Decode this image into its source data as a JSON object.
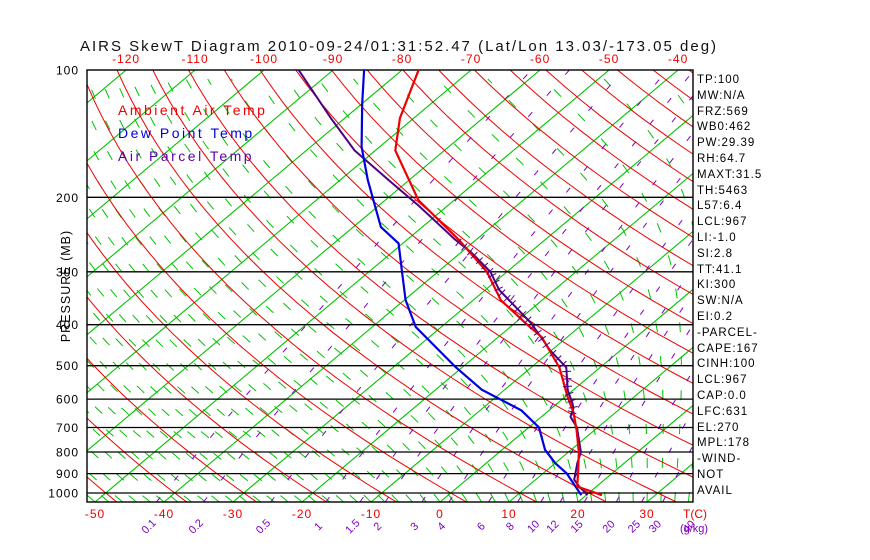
{
  "title": "AIRS SkewT Diagram 2010-09-24/01:31:52.47 (Lat/Lon 13.03/-173.05 deg)",
  "legend": {
    "ambient": "Ambient Air Temp",
    "dew": "Dew Point Temp",
    "parcel": "Air Parcel Temp"
  },
  "colors": {
    "isotherm_green": "#00c300",
    "adiabat_red": "#ee0000",
    "mixing_purple": "#8000c8",
    "parcel_purple": "#4b0082",
    "ambient_red": "#ee0000",
    "dew_blue": "#0000e0",
    "axis_black": "#000000"
  },
  "axes": {
    "pressure_title": "PRESSURE (MB)",
    "pressure_ticks": [
      100,
      200,
      300,
      400,
      500,
      600,
      700,
      800,
      900,
      1000
    ],
    "top_temp_ticks": [
      -120,
      -110,
      -100,
      -90,
      -80,
      -70,
      -60,
      -50,
      -40
    ],
    "bottom_temp_ticks": [
      -50,
      -40,
      -30,
      -20,
      -10,
      0,
      10,
      20,
      30
    ],
    "temp_unit_label": "T(C)",
    "mixing_ratio_values": [
      0.1,
      0.2,
      0.5,
      1,
      1.5,
      2,
      3,
      4,
      6,
      8,
      10,
      12,
      15,
      20,
      25,
      30,
      40
    ],
    "mixing_unit_label": "(g/kg)"
  },
  "stats": [
    "TP:100",
    "MW:N/A",
    "FRZ:569",
    "WB0:462",
    "PW:29.39",
    "RH:64.7",
    "MAXT:31.5",
    "TH:5463",
    "L57:6.4",
    "LCL:967",
    "LI:-1.0",
    "SI:2.8",
    "TT:41.1",
    "KI:300",
    "SW:N/A",
    "EI:0.2",
    "-PARCEL-",
    "CAPE:167",
    "CINH:100",
    "LCL:967",
    "CAP:0.0",
    "LFC:631",
    "EL:270",
    "MPL:178",
    "-WIND-",
    "NOT",
    "AVAIL"
  ],
  "chart_data": {
    "type": "line",
    "title": "AIRS SkewT Diagram 2010-09-24/01:31:52.47",
    "xlabel": "Temperature (C), skewed isotherms",
    "ylabel": "Pressure (MB), logarithmic 100-1050",
    "ylim": [
      100,
      1050
    ],
    "grid": {
      "isotherms_c": {
        "from": -130,
        "to": 40,
        "step": 10
      },
      "dry_adiabats_theta_c": {
        "from": -60,
        "to": 190,
        "step": 10
      },
      "moist_adiabats_start_c": {
        "from": -62,
        "to": 44,
        "step": 2
      },
      "mixing_ratio_g_kg": [
        0.1,
        0.2,
        0.5,
        1,
        1.5,
        2,
        3,
        4,
        6,
        8,
        10,
        12,
        15,
        20,
        25,
        30,
        40
      ]
    },
    "hatch_region": {
      "parcel_warm_layer_mb": [
        270,
        631
      ]
    },
    "series": [
      {
        "name": "Ambient Air Temp",
        "color": "#ee0000",
        "points_p_t": [
          [
            100,
            -77.6
          ],
          [
            130,
            -72.0
          ],
          [
            155,
            -67.1
          ],
          [
            203,
            -55.2
          ],
          [
            252,
            -42.5
          ],
          [
            300,
            -32.9
          ],
          [
            350,
            -26.0
          ],
          [
            397,
            -18.4
          ],
          [
            428,
            -13.7
          ],
          [
            505,
            -5.9
          ],
          [
            590,
            0.2
          ],
          [
            645,
            3.9
          ],
          [
            710,
            7.4
          ],
          [
            800,
            11.5
          ],
          [
            885,
            14.6
          ],
          [
            965,
            17.2
          ],
          [
            1012,
            22.3
          ]
        ]
      },
      {
        "name": "Dew Point Temp",
        "color": "#0000e0",
        "points_p_t": [
          [
            100,
            -85.5
          ],
          [
            120,
            -80.0
          ],
          [
            152,
            -72.6
          ],
          [
            182,
            -66.0
          ],
          [
            235,
            -56.0
          ],
          [
            257,
            -50.6
          ],
          [
            300,
            -45.2
          ],
          [
            350,
            -39.8
          ],
          [
            405,
            -33.7
          ],
          [
            504,
            -21.0
          ],
          [
            570,
            -13.3
          ],
          [
            638,
            -4.0
          ],
          [
            700,
            1.5
          ],
          [
            790,
            6.2
          ],
          [
            850,
            10.0
          ],
          [
            900,
            13.5
          ],
          [
            1012,
            19.3
          ]
        ]
      },
      {
        "name": "Air Parcel Temp",
        "color": "#4b0082",
        "points_p_t": [
          [
            100,
            -95.0
          ],
          [
            130,
            -82.0
          ],
          [
            155,
            -73.0
          ],
          [
            182,
            -63.0
          ],
          [
            210,
            -54.0
          ],
          [
            252,
            -43.0
          ],
          [
            270,
            -38.5
          ],
          [
            300,
            -32.4
          ],
          [
            331,
            -28.0
          ],
          [
            397,
            -17.6
          ],
          [
            460,
            -10.2
          ],
          [
            505,
            -4.9
          ],
          [
            571,
            -0.8
          ],
          [
            614,
            2.2
          ],
          [
            631,
            3.2
          ],
          [
            660,
            4.2
          ],
          [
            700,
            7.0
          ],
          [
            800,
            11.8
          ],
          [
            850,
            13.2
          ],
          [
            930,
            15.6
          ],
          [
            967,
            17.6
          ],
          [
            1012,
            20.2
          ]
        ]
      }
    ]
  }
}
